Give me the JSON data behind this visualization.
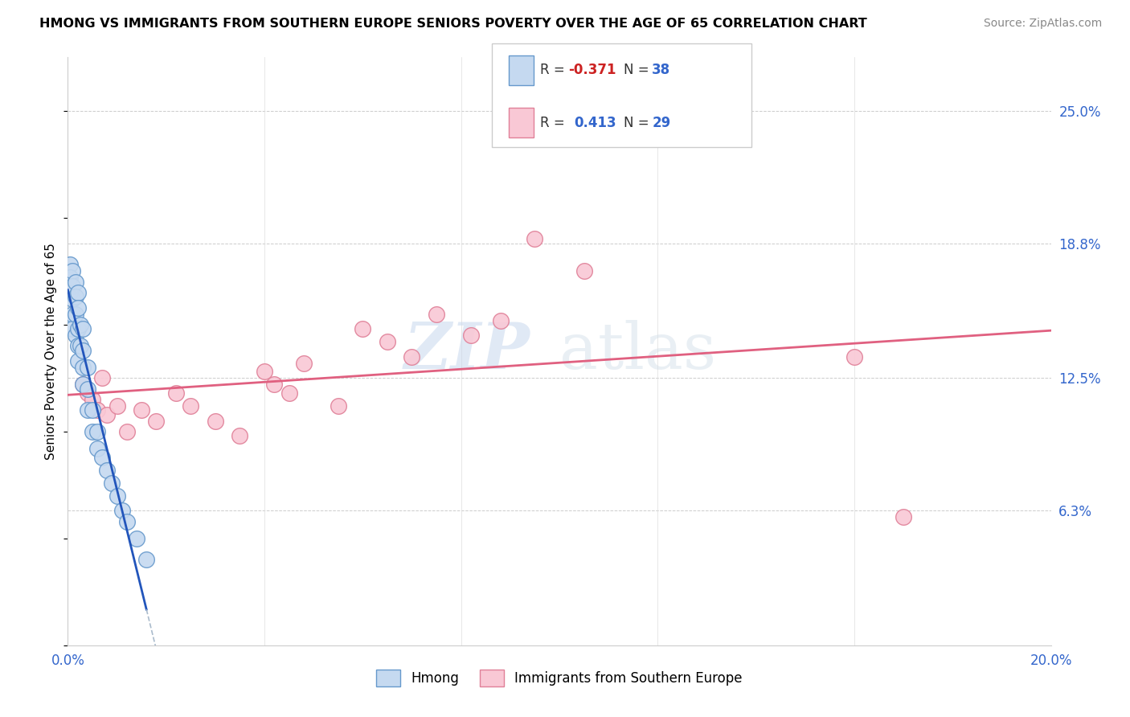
{
  "title": "HMONG VS IMMIGRANTS FROM SOUTHERN EUROPE SENIORS POVERTY OVER THE AGE OF 65 CORRELATION CHART",
  "source": "Source: ZipAtlas.com",
  "ylabel_label": "Seniors Poverty Over the Age of 65",
  "x_min": 0.0,
  "x_max": 0.2,
  "y_min": 0.0,
  "y_max": 0.275,
  "y_tick_labels_right": [
    "25.0%",
    "18.8%",
    "12.5%",
    "6.3%"
  ],
  "y_tick_vals_right": [
    0.25,
    0.188,
    0.125,
    0.063
  ],
  "watermark_zip": "ZIP",
  "watermark_atlas": "atlas",
  "color_hmong_fill": "#c5d9f0",
  "color_hmong_edge": "#6699cc",
  "color_se_fill": "#f9c8d5",
  "color_se_edge": "#e08098",
  "color_line_hmong": "#2255bb",
  "color_line_se": "#e06080",
  "color_line_dashed": "#aabbcc",
  "hmong_x": [
    0.0005,
    0.0005,
    0.0005,
    0.001,
    0.001,
    0.001,
    0.001,
    0.001,
    0.0015,
    0.0015,
    0.0015,
    0.0015,
    0.002,
    0.002,
    0.002,
    0.002,
    0.002,
    0.0025,
    0.0025,
    0.003,
    0.003,
    0.003,
    0.003,
    0.004,
    0.004,
    0.004,
    0.005,
    0.005,
    0.006,
    0.006,
    0.007,
    0.008,
    0.009,
    0.01,
    0.011,
    0.012,
    0.014,
    0.016
  ],
  "hmong_y": [
    0.178,
    0.172,
    0.165,
    0.175,
    0.168,
    0.162,
    0.155,
    0.148,
    0.17,
    0.163,
    0.155,
    0.145,
    0.165,
    0.158,
    0.148,
    0.14,
    0.133,
    0.15,
    0.14,
    0.148,
    0.138,
    0.13,
    0.122,
    0.13,
    0.12,
    0.11,
    0.11,
    0.1,
    0.1,
    0.092,
    0.088,
    0.082,
    0.076,
    0.07,
    0.063,
    0.058,
    0.05,
    0.04
  ],
  "se_x": [
    0.003,
    0.004,
    0.005,
    0.006,
    0.007,
    0.008,
    0.01,
    0.012,
    0.015,
    0.018,
    0.022,
    0.025,
    0.03,
    0.035,
    0.04,
    0.042,
    0.045,
    0.048,
    0.055,
    0.06,
    0.065,
    0.07,
    0.075,
    0.082,
    0.088,
    0.095,
    0.105,
    0.16,
    0.17
  ],
  "se_y": [
    0.122,
    0.118,
    0.115,
    0.11,
    0.125,
    0.108,
    0.112,
    0.1,
    0.11,
    0.105,
    0.118,
    0.112,
    0.105,
    0.098,
    0.128,
    0.122,
    0.118,
    0.132,
    0.112,
    0.148,
    0.142,
    0.135,
    0.155,
    0.145,
    0.152,
    0.19,
    0.175,
    0.135,
    0.06
  ]
}
